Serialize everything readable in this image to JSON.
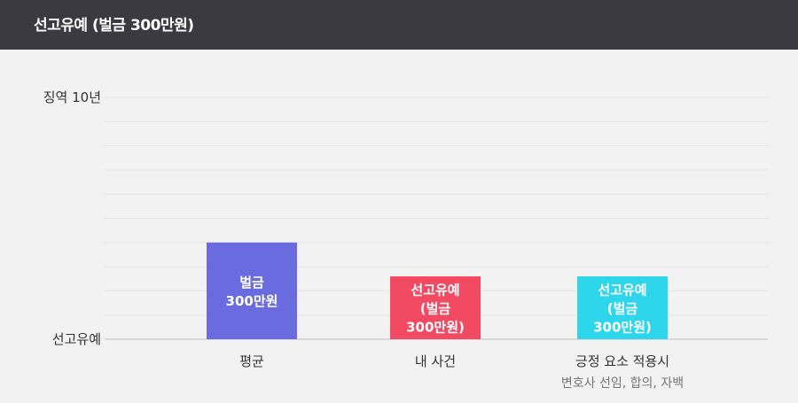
{
  "header": {
    "title": "선고유예 (벌금 300만원)"
  },
  "chart_data": {
    "type": "bar",
    "y_tick_labels": [
      "징역 10년",
      "선고유예"
    ],
    "categories": [
      {
        "label": "평균",
        "sublabel": ""
      },
      {
        "label": "내 사건",
        "sublabel": ""
      },
      {
        "label": "긍정 요소 적용시",
        "sublabel": "변호사 선임, 합의, 자백"
      }
    ],
    "values": [
      4,
      2.6,
      2.6
    ],
    "ylim": [
      0,
      10
    ],
    "data_labels": [
      [
        "벌금",
        "300만원"
      ],
      [
        "선고유예",
        "(벌금",
        "300만원)"
      ],
      [
        "선고유예",
        "(벌금",
        "300만원)"
      ]
    ],
    "colors": [
      "#6b6be0",
      "#f24a62",
      "#2ed6ec"
    ],
    "grid": true,
    "legend": "none"
  },
  "colors": {
    "header_bg": "#3b3a40",
    "background": "#f2f2f2",
    "gridline": "#e4e4e4",
    "baseline": "#d0d0d0",
    "text": "#333333",
    "subtext": "#777777"
  }
}
